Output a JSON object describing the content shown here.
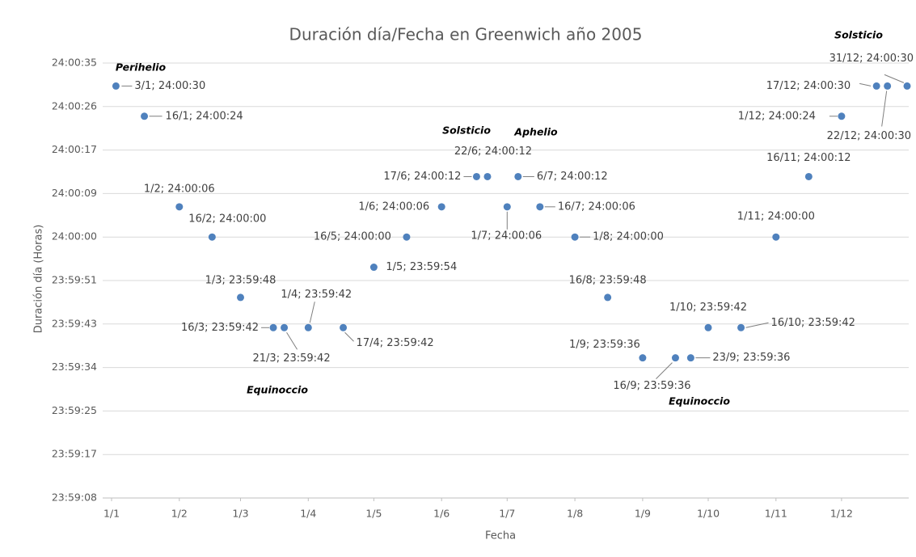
{
  "chart_data": {
    "type": "scatter",
    "title": "Duración día/Fecha en Greenwich año 2005",
    "x_label": "Fecha",
    "y_label": "Duración día (Horas)",
    "color": "#4f81bd",
    "grid": true,
    "x": [
      3,
      16,
      32,
      47,
      60,
      75,
      80,
      91,
      107,
      121,
      136,
      152,
      168,
      173,
      182,
      187,
      197,
      213,
      228,
      244,
      259,
      266,
      274,
      289,
      305,
      320,
      335,
      351,
      356,
      365
    ],
    "values": [
      86430,
      86424,
      86406,
      86400,
      86388,
      86382,
      86382,
      86382,
      86382,
      86394,
      86400,
      86406,
      86412,
      86412,
      86406,
      86412,
      86406,
      86400,
      86388,
      86376,
      86376,
      86376,
      86382,
      86382,
      86400,
      86412,
      86424,
      86430,
      86430,
      86430
    ],
    "value_labels": [
      "3/1; 24:00:30",
      "16/1; 24:00:24",
      "1/2; 24:00:06",
      "16/2; 24:00:00",
      "1/3; 23:59:48",
      "16/3; 23:59:42",
      "21/3; 23:59:42",
      "1/4; 23:59:42",
      "17/4; 23:59:42",
      "1/5; 23:59:54",
      "16/5; 24:00:00",
      "1/6; 24:00:06",
      "17/6; 24:00:12",
      "22/6; 24:00:12",
      "1/7; 24:00:06",
      "6/7; 24:00:12",
      "16/7; 24:00:06",
      "1/8; 24:00:00",
      "16/8; 23:59:48",
      "1/9; 23:59:36",
      "16/9; 23:59:36",
      "23/9; 23:59:36",
      "1/10; 23:59:42",
      "16/10; 23:59:42",
      "1/11; 24:00:00",
      "16/11; 24:00:12",
      "1/12; 24:00:24",
      "17/12; 24:00:30",
      "22/12; 24:00:30",
      "31/12; 24:00:30"
    ],
    "xlim": [
      1,
      365
    ],
    "xticks": [
      {
        "value": 1,
        "label": "1/1"
      },
      {
        "value": 32,
        "label": "1/2"
      },
      {
        "value": 60,
        "label": "1/3"
      },
      {
        "value": 91,
        "label": "1/4"
      },
      {
        "value": 121,
        "label": "1/5"
      },
      {
        "value": 152,
        "label": "1/6"
      },
      {
        "value": 182,
        "label": "1/7"
      },
      {
        "value": 213,
        "label": "1/8"
      },
      {
        "value": 244,
        "label": "1/9"
      },
      {
        "value": 274,
        "label": "1/10"
      },
      {
        "value": 305,
        "label": "1/11"
      },
      {
        "value": 335,
        "label": "1/12"
      }
    ],
    "ylim": [
      86348.16,
      86434.56
    ],
    "yticks": [
      {
        "value": 86434.56,
        "label": "24:00:35"
      },
      {
        "value": 86425.92,
        "label": "24:00:26"
      },
      {
        "value": 86417.28,
        "label": "24:00:17"
      },
      {
        "value": 86408.64,
        "label": "24:00:09"
      },
      {
        "value": 86400,
        "label": "24:00:00"
      },
      {
        "value": 86391.36,
        "label": "23:59:51"
      },
      {
        "value": 86382.72,
        "label": "23:59:43"
      },
      {
        "value": 86374.08,
        "label": "23:59:34"
      },
      {
        "value": 86365.44,
        "label": "23:59:25"
      },
      {
        "value": 86356.8,
        "label": "23:59:17"
      },
      {
        "value": 86348.16,
        "label": "23:59:08"
      }
    ],
    "annotations": [
      "Perihelio",
      "Solsticio",
      "Aphelio",
      "Equinoccio",
      "Equinoccio",
      "Solsticio"
    ]
  }
}
